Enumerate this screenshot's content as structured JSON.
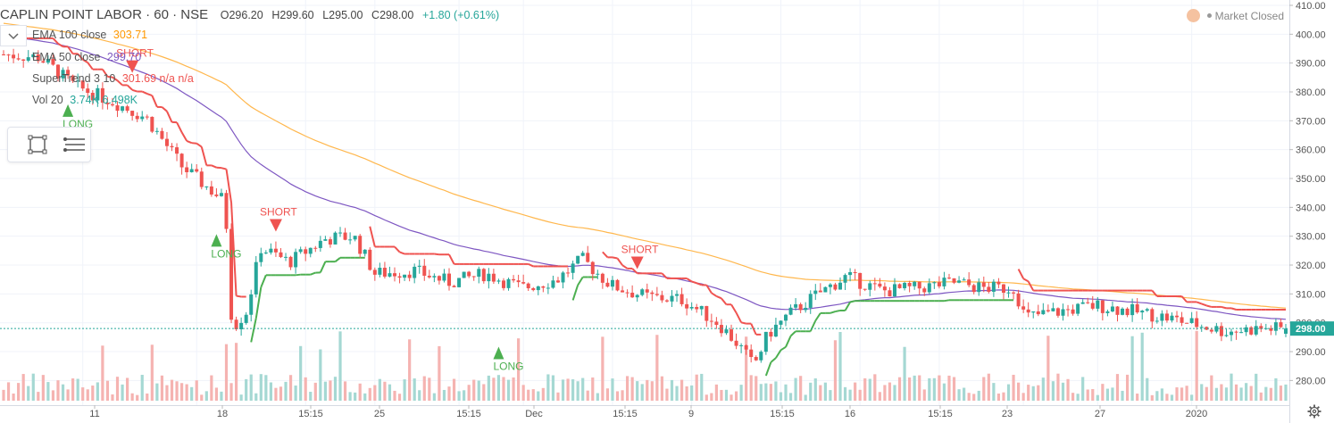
{
  "header": {
    "symbol": "CAPLIN POINT LABOR · 60 · NSE",
    "open": "O296.20",
    "high": "H299.60",
    "low": "L295.00",
    "close": "C298.00",
    "change": "+1.80 (+0.61%)"
  },
  "indicators": [
    {
      "label": "EMA 100 close",
      "values": "303.71",
      "color": "#ff9800"
    },
    {
      "label": "EMA 50 close",
      "values": "299.70",
      "color": "#7e57c2"
    },
    {
      "label": "SuperTrend 3 10",
      "values": "301.69  n/a  n/a",
      "color": "#ef5350"
    },
    {
      "label": "Vol 20",
      "values": "3.74K  6.498K",
      "color": "#26a69a"
    }
  ],
  "status": {
    "market": "Market Closed"
  },
  "icons": {
    "toolbox": [
      "rectangle-select-icon",
      "lines-menu-icon"
    ],
    "settings": "gear-icon",
    "collapse": "chevron-down-icon"
  },
  "colors": {
    "up": "#26a69a",
    "down": "#ef5350",
    "ema100": "#ffb74d",
    "ema50": "#7e57c2",
    "supertrend_up": "#4caf50",
    "supertrend_down": "#ef5350",
    "last_price_bg": "#26a69a"
  },
  "chart_data": {
    "type": "candlestick",
    "ylim": [
      273,
      410
    ],
    "y_ticks": [
      280,
      290,
      300,
      310,
      320,
      330,
      340,
      350,
      360,
      370,
      380,
      390,
      400,
      410
    ],
    "x_tick_labels": [
      "11",
      "18",
      "15:15",
      "25",
      "15:15",
      "Dec",
      "15:15",
      "9",
      "15:15",
      "16",
      "15:15",
      "23",
      "27",
      "2020"
    ],
    "last_price": "298.00",
    "signals": [
      {
        "type": "LONG",
        "x_index": 18,
        "price": 372
      },
      {
        "type": "SHORT",
        "x_index": 36,
        "price": 386
      },
      {
        "type": "LONG",
        "x_index": 59,
        "price": 327
      },
      {
        "type": "SHORT",
        "x_index": 76,
        "price": 331
      },
      {
        "type": "LONG",
        "x_index": 139,
        "price": 288
      },
      {
        "type": "SHORT",
        "x_index": 177,
        "price": 318
      }
    ],
    "series": [
      {
        "name": "EMA 100 close"
      },
      {
        "name": "EMA 50 close"
      },
      {
        "name": "SuperTrend 3 10"
      }
    ]
  }
}
